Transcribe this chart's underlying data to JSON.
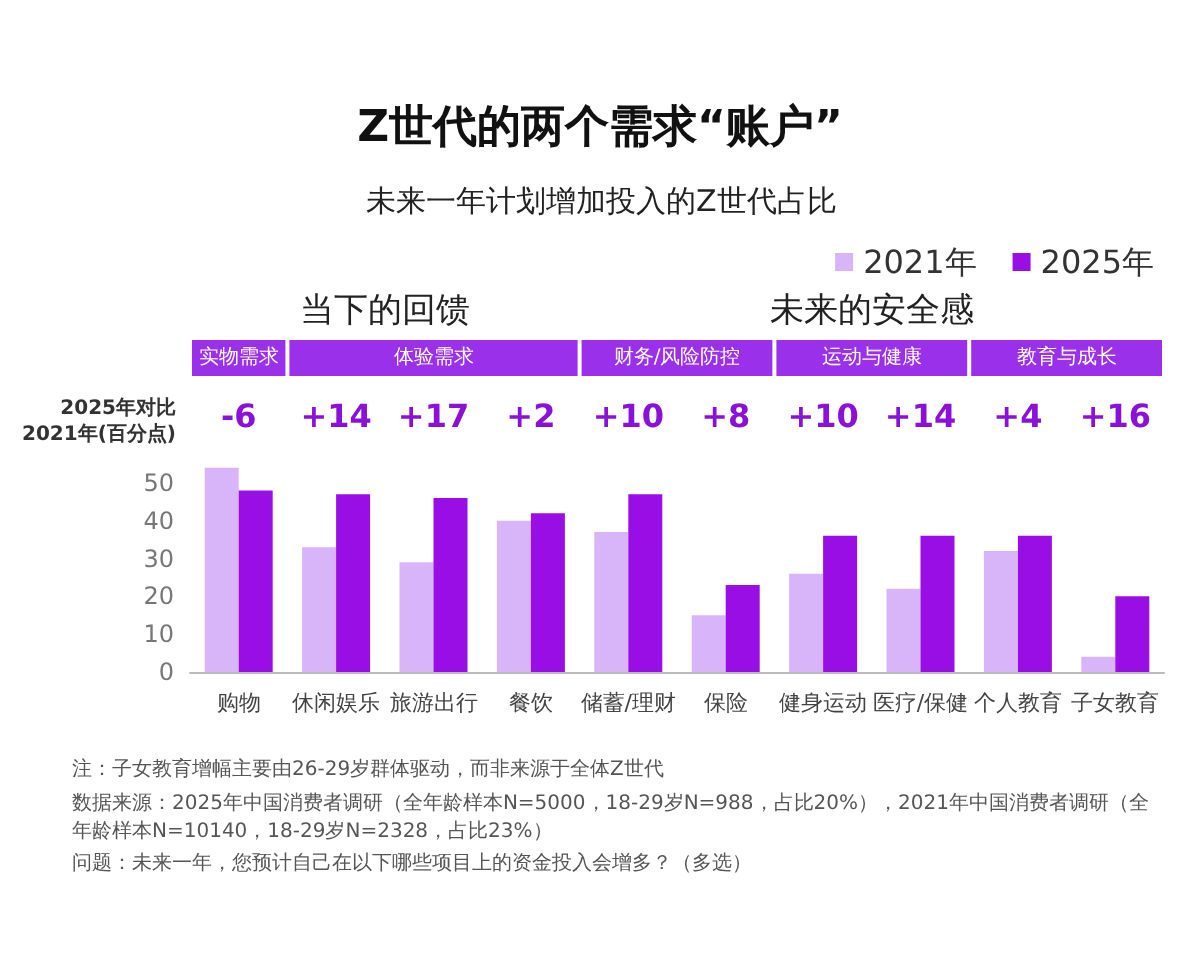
{
  "chart_data": {
    "type": "bar",
    "title": "Z世代的两个需求“账户”",
    "subtitle": "未来一年计划增加投入的Z世代占比",
    "categories": [
      "购物",
      "休闲娱乐",
      "旅游出行",
      "餐饮",
      "储蓄/理财",
      "保险",
      "健身运动",
      "医疗/保健",
      "个人教育",
      "子女教育"
    ],
    "series": [
      {
        "name": "2021年",
        "color": "#d8b4f8",
        "values": [
          54,
          33,
          29,
          40,
          37,
          15,
          26,
          22,
          32,
          4
        ]
      },
      {
        "name": "2025年",
        "color": "#9a0ee6",
        "values": [
          48,
          47,
          46,
          42,
          47,
          23,
          36,
          36,
          36,
          20
        ]
      }
    ],
    "ylim": [
      0,
      55
    ],
    "yticks": [
      0,
      10,
      20,
      30,
      40,
      50
    ],
    "grid": false,
    "legend": "top right",
    "annotations": [
      "2025年对比\n2021年(百分点)",
      "-6",
      "+14",
      "+17",
      "+2",
      "+10",
      "+8",
      "+10",
      "+14",
      "+4",
      "+16",
      "当下的回馈",
      "未来的安全感",
      "实物需求",
      "体验需求",
      "财务/风险防控",
      "运动与健康",
      "教育与成长",
      "注：子女教育增幅主要由26-29岁群体驱动，而非来源于全体Z世代",
      "数据来源：2025年中国消费者调研（全年龄样本N=5000，18-29岁N=988，占比20%），2021年中国消费者调研（全年龄样本N=10140，18-29岁N=2328，占比23%）",
      "问题：未来一年，您预计自己在以下哪些项目上的资金投入会增多？（多选）"
    ]
  }
}
